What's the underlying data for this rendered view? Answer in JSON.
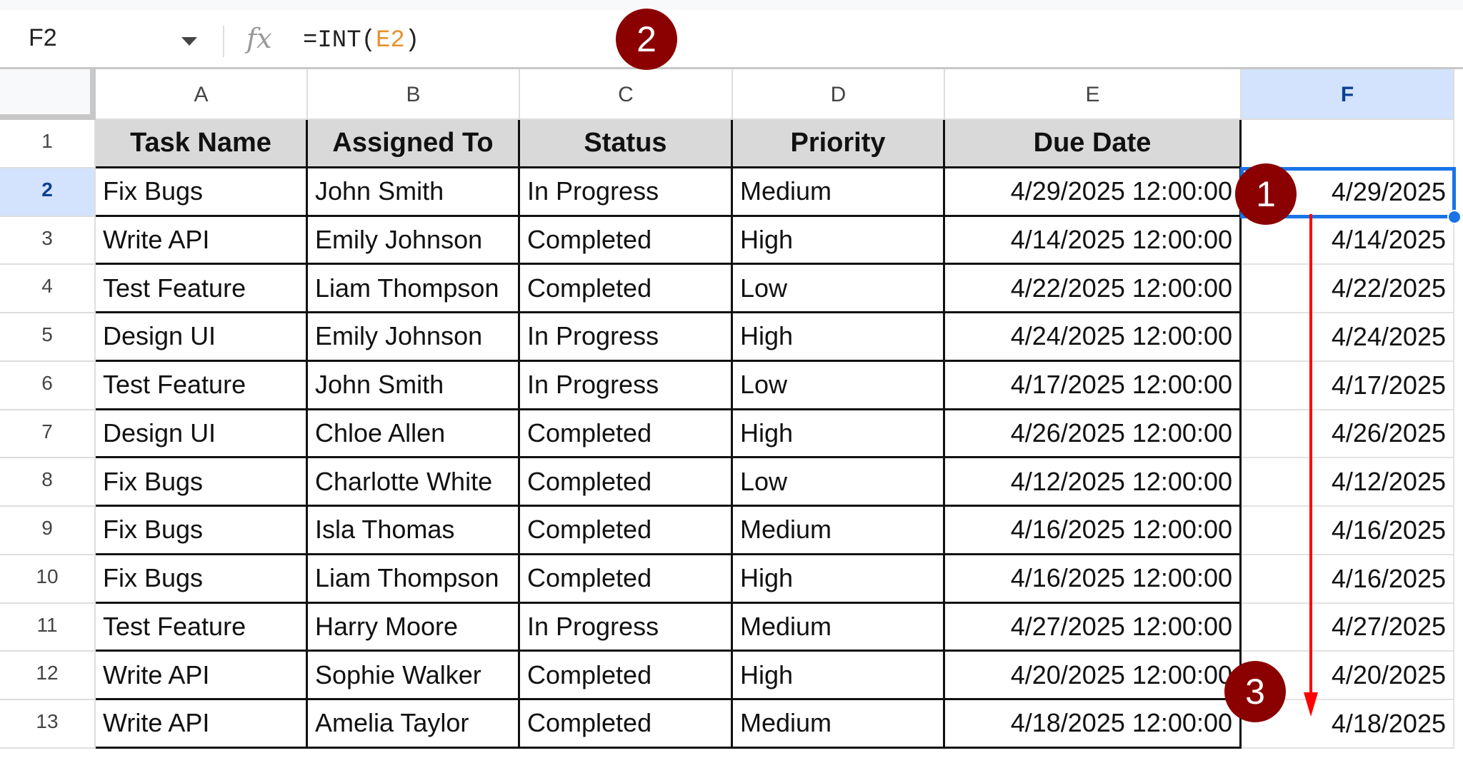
{
  "formula_bar": {
    "name_box": "F2",
    "fx": "fx",
    "formula_prefix": "=INT(",
    "formula_ref": "E2",
    "formula_suffix": ")"
  },
  "columns": [
    "A",
    "B",
    "C",
    "D",
    "E",
    "F"
  ],
  "selected_column": "F",
  "rows": [
    "1",
    "2",
    "3",
    "4",
    "5",
    "6",
    "7",
    "8",
    "9",
    "10",
    "11",
    "12",
    "13"
  ],
  "selected_row": "2",
  "headers": [
    "Task Name",
    "Assigned To",
    "Status",
    "Priority",
    "Due Date",
    ""
  ],
  "data": [
    [
      "Fix Bugs",
      "John Smith",
      "In Progress",
      "Medium",
      "4/29/2025 12:00:00",
      "4/29/2025"
    ],
    [
      "Write API",
      "Emily Johnson",
      "Completed",
      "High",
      "4/14/2025 12:00:00",
      "4/14/2025"
    ],
    [
      "Test Feature",
      "Liam Thompson",
      "Completed",
      "Low",
      "4/22/2025 12:00:00",
      "4/22/2025"
    ],
    [
      "Design UI",
      "Emily Johnson",
      "In Progress",
      "High",
      "4/24/2025 12:00:00",
      "4/24/2025"
    ],
    [
      "Test Feature",
      "John Smith",
      "In Progress",
      "Low",
      "4/17/2025 12:00:00",
      "4/17/2025"
    ],
    [
      "Design UI",
      "Chloe Allen",
      "Completed",
      "High",
      "4/26/2025 12:00:00",
      "4/26/2025"
    ],
    [
      "Fix Bugs",
      "Charlotte White",
      "Completed",
      "Low",
      "4/12/2025 12:00:00",
      "4/12/2025"
    ],
    [
      "Fix Bugs",
      "Isla Thomas",
      "Completed",
      "Medium",
      "4/16/2025 12:00:00",
      "4/16/2025"
    ],
    [
      "Fix Bugs",
      "Liam Thompson",
      "Completed",
      "High",
      "4/16/2025 12:00:00",
      "4/16/2025"
    ],
    [
      "Test Feature",
      "Harry Moore",
      "In Progress",
      "Medium",
      "4/27/2025 12:00:00",
      "4/27/2025"
    ],
    [
      "Write API",
      "Sophie Walker",
      "Completed",
      "High",
      "4/20/2025 12:00:00",
      "4/20/2025"
    ],
    [
      "Write API",
      "Amelia Taylor",
      "Completed",
      "Medium",
      "4/18/2025 12:00:00",
      "4/18/2025"
    ]
  ],
  "annotations": [
    "1",
    "2",
    "3"
  ],
  "colors": {
    "badge": "#8b0000",
    "selection": "#1a73e8",
    "arrow": "#ff0000",
    "header_fill": "#d9d9d9"
  }
}
